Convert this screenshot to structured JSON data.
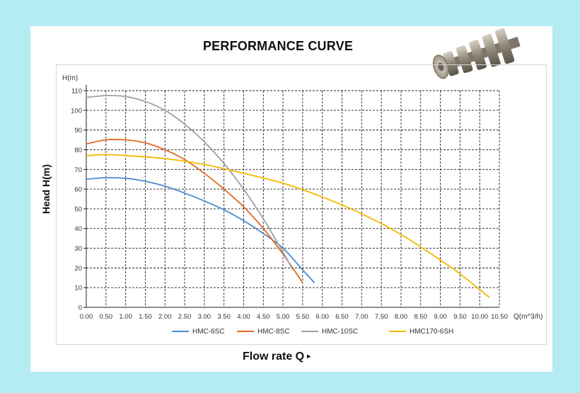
{
  "title": "PERFORMANCE CURVE",
  "y_axis_title": "Head H(m)",
  "x_axis_title": "Flow rate Q",
  "x_axis_arrow": "▸",
  "product_image": "pump-impeller-stack-photo",
  "colors": {
    "background": "#b5ecf3",
    "grid": "#222222",
    "HMC-6SC": "#4a8ad0",
    "HMC-8SC": "#e06a22",
    "HMC-10SC": "#a0a0a0",
    "HMC170-6SH": "#f5b800"
  },
  "chart_data": {
    "type": "line",
    "title": "PERFORMANCE CURVE",
    "xlabel": "Q(m^3/h)",
    "ylabel": "H(m)",
    "xlim": [
      0,
      10.5
    ],
    "ylim": [
      0,
      110
    ],
    "x_ticks": [
      "0.00",
      "0.50",
      "1.00",
      "1.50",
      "2.00",
      "2.50",
      "3.00",
      "3.50",
      "4.00",
      "4.50",
      "5.00",
      "5.50",
      "6.00",
      "6.50",
      "7.00",
      "7.50",
      "8.00",
      "8.50",
      "9.00",
      "9.50",
      "10.00",
      "10.50"
    ],
    "y_ticks": [
      "0",
      "10",
      "20",
      "30",
      "40",
      "50",
      "60",
      "70",
      "80",
      "90",
      "100",
      "110"
    ],
    "grid": true,
    "legend_position": "bottom",
    "series": [
      {
        "name": "HMC-6SC",
        "x": [
          0,
          0.5,
          1.0,
          1.5,
          2.0,
          2.5,
          3.0,
          3.5,
          4.0,
          4.5,
          5.0,
          5.5,
          5.8
        ],
        "y": [
          65,
          65.8,
          65.5,
          64,
          61.5,
          58,
          54,
          49.5,
          44,
          37.5,
          30,
          19,
          12.5
        ]
      },
      {
        "name": "HMC-8SC",
        "x": [
          0,
          0.5,
          1.0,
          1.5,
          2.0,
          2.5,
          3.0,
          3.5,
          4.0,
          4.5,
          5.0,
          5.5
        ],
        "y": [
          83,
          85,
          85,
          83.5,
          80,
          75,
          68,
          60,
          51,
          40,
          27,
          12.5
        ]
      },
      {
        "name": "HMC-10SC",
        "x": [
          0,
          0.5,
          1.0,
          1.5,
          2.0,
          2.5,
          3.0,
          3.5,
          4.0,
          4.5,
          5.0,
          5.25
        ],
        "y": [
          106.5,
          107.5,
          107,
          104.5,
          100,
          93,
          84,
          73,
          60,
          45,
          28,
          19
        ]
      },
      {
        "name": "HMC170-6SH",
        "x": [
          0,
          0.5,
          1.0,
          2.0,
          3.0,
          4.0,
          5.0,
          6.0,
          7.0,
          8.0,
          9.0,
          9.5,
          10.0,
          10.25
        ],
        "y": [
          77,
          77.5,
          77,
          75.5,
          72.5,
          68,
          63,
          56,
          47.5,
          37,
          24,
          17,
          9,
          5
        ]
      }
    ]
  }
}
